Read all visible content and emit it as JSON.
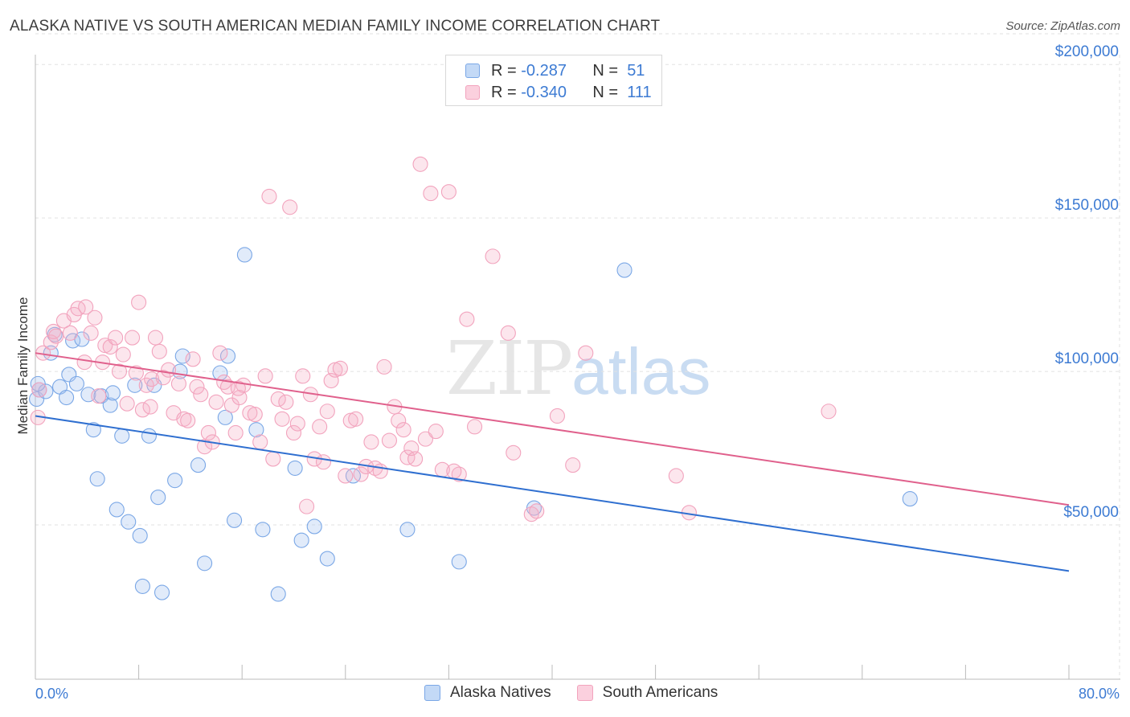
{
  "title": "ALASKA NATIVE VS SOUTH AMERICAN MEDIAN FAMILY INCOME CORRELATION CHART",
  "source": "Source: ZipAtlas.com",
  "watermark": {
    "zip": "ZIP",
    "atlas": "atlas"
  },
  "legend_top": [
    {
      "r_label": "R =",
      "r_value": "-0.287",
      "n_label": "N =",
      "n_value": "51"
    },
    {
      "r_label": "R =",
      "r_value": "-0.340",
      "n_label": "N =",
      "n_value": "111"
    }
  ],
  "chart_data": {
    "type": "scatter",
    "title": "ALASKA NATIVE VS SOUTH AMERICAN MEDIAN FAMILY INCOME CORRELATION CHART",
    "xlabel": "",
    "ylabel": "Median Family Income",
    "xlim": [
      0,
      80
    ],
    "ylim": [
      0,
      210000
    ],
    "x_tick_labels": [
      "0.0%",
      "80.0%"
    ],
    "y_ticks": [
      50000,
      100000,
      150000,
      200000
    ],
    "y_tick_labels": [
      "$50,000",
      "$100,000",
      "$150,000",
      "$200,000"
    ],
    "grid": true,
    "legend_position": "bottom-center",
    "series": [
      {
        "name": "Alaska Natives",
        "color": "#7aa7e6",
        "trend": {
          "x": [
            0,
            80
          ],
          "y": [
            85500,
            35000
          ],
          "color": "#2f6fd0"
        },
        "points": [
          [
            0.1,
            91000
          ],
          [
            0.3,
            94000
          ],
          [
            0.8,
            93500
          ],
          [
            1.2,
            106000
          ],
          [
            1.5,
            112000
          ],
          [
            1.9,
            95000
          ],
          [
            2.4,
            91500
          ],
          [
            2.6,
            99000
          ],
          [
            2.9,
            110000
          ],
          [
            3.2,
            96000
          ],
          [
            3.6,
            110500
          ],
          [
            4.1,
            92500
          ],
          [
            4.5,
            81000
          ],
          [
            4.8,
            65000
          ],
          [
            5.1,
            92000
          ],
          [
            5.8,
            89000
          ],
          [
            6.3,
            55000
          ],
          [
            6.7,
            79000
          ],
          [
            7.2,
            51000
          ],
          [
            7.7,
            95500
          ],
          [
            8.1,
            46500
          ],
          [
            8.3,
            30000
          ],
          [
            8.8,
            79000
          ],
          [
            9.2,
            95500
          ],
          [
            9.5,
            59000
          ],
          [
            9.8,
            28000
          ],
          [
            10.8,
            64500
          ],
          [
            11.2,
            100000
          ],
          [
            11.4,
            105000
          ],
          [
            12.6,
            69500
          ],
          [
            13.1,
            37500
          ],
          [
            14.3,
            99500
          ],
          [
            14.7,
            85000
          ],
          [
            14.9,
            105000
          ],
          [
            15.4,
            51500
          ],
          [
            16.2,
            138000
          ],
          [
            17.1,
            81000
          ],
          [
            17.6,
            48500
          ],
          [
            18.8,
            27500
          ],
          [
            20.1,
            68500
          ],
          [
            20.6,
            45000
          ],
          [
            21.6,
            49500
          ],
          [
            22.6,
            39000
          ],
          [
            24.6,
            66000
          ],
          [
            28.8,
            48500
          ],
          [
            32.8,
            38000
          ],
          [
            38.6,
            55500
          ],
          [
            45.6,
            133000
          ],
          [
            67.7,
            58500
          ],
          [
            0.2,
            96000
          ],
          [
            6.0,
            93000
          ]
        ]
      },
      {
        "name": "South Americans",
        "color": "#f2a3bd",
        "trend": {
          "x": [
            0,
            80
          ],
          "y": [
            106000,
            56500
          ],
          "color": "#e0608c"
        },
        "points": [
          [
            0.2,
            85000
          ],
          [
            0.3,
            94000
          ],
          [
            0.6,
            106000
          ],
          [
            1.2,
            109500
          ],
          [
            1.4,
            113000
          ],
          [
            1.6,
            111500
          ],
          [
            2.2,
            116500
          ],
          [
            2.7,
            112500
          ],
          [
            3.0,
            118500
          ],
          [
            3.3,
            120500
          ],
          [
            3.9,
            121000
          ],
          [
            4.3,
            112500
          ],
          [
            4.6,
            117500
          ],
          [
            4.9,
            92000
          ],
          [
            5.2,
            103000
          ],
          [
            5.4,
            108500
          ],
          [
            5.8,
            108000
          ],
          [
            6.2,
            111000
          ],
          [
            6.5,
            100000
          ],
          [
            6.8,
            105500
          ],
          [
            7.1,
            89500
          ],
          [
            7.5,
            111000
          ],
          [
            7.8,
            99500
          ],
          [
            8.0,
            122500
          ],
          [
            8.3,
            87500
          ],
          [
            8.6,
            95500
          ],
          [
            9.0,
            97500
          ],
          [
            9.3,
            111000
          ],
          [
            9.6,
            106500
          ],
          [
            9.9,
            98000
          ],
          [
            10.3,
            100500
          ],
          [
            10.7,
            86500
          ],
          [
            11.1,
            96000
          ],
          [
            11.5,
            84500
          ],
          [
            11.8,
            84000
          ],
          [
            12.2,
            104000
          ],
          [
            12.5,
            95000
          ],
          [
            12.8,
            92500
          ],
          [
            13.1,
            75500
          ],
          [
            13.4,
            80000
          ],
          [
            13.7,
            77000
          ],
          [
            14.0,
            90000
          ],
          [
            14.3,
            106000
          ],
          [
            14.6,
            96500
          ],
          [
            14.9,
            95000
          ],
          [
            15.2,
            89000
          ],
          [
            15.5,
            80000
          ],
          [
            15.8,
            91500
          ],
          [
            16.1,
            95500
          ],
          [
            16.6,
            86500
          ],
          [
            17.0,
            86000
          ],
          [
            17.4,
            77000
          ],
          [
            17.8,
            98500
          ],
          [
            18.1,
            157000
          ],
          [
            18.4,
            71500
          ],
          [
            18.8,
            91000
          ],
          [
            19.1,
            84500
          ],
          [
            19.4,
            90000
          ],
          [
            19.7,
            153500
          ],
          [
            20.0,
            80000
          ],
          [
            20.3,
            83000
          ],
          [
            20.7,
            98500
          ],
          [
            21.0,
            56000
          ],
          [
            21.3,
            92500
          ],
          [
            21.6,
            71500
          ],
          [
            22.0,
            82000
          ],
          [
            22.3,
            70500
          ],
          [
            22.6,
            87000
          ],
          [
            22.9,
            97000
          ],
          [
            23.2,
            100500
          ],
          [
            23.6,
            101000
          ],
          [
            24.0,
            66000
          ],
          [
            24.4,
            84000
          ],
          [
            24.8,
            84500
          ],
          [
            25.2,
            66500
          ],
          [
            25.6,
            69000
          ],
          [
            26.0,
            77000
          ],
          [
            26.3,
            68500
          ],
          [
            26.7,
            67500
          ],
          [
            27.0,
            101500
          ],
          [
            27.4,
            77500
          ],
          [
            27.8,
            88500
          ],
          [
            28.1,
            84000
          ],
          [
            28.5,
            81000
          ],
          [
            28.8,
            72000
          ],
          [
            29.1,
            75000
          ],
          [
            29.4,
            71500
          ],
          [
            29.8,
            167500
          ],
          [
            30.2,
            78000
          ],
          [
            30.6,
            158000
          ],
          [
            31.0,
            80500
          ],
          [
            31.5,
            68000
          ],
          [
            32.0,
            158500
          ],
          [
            32.8,
            66500
          ],
          [
            32.4,
            67500
          ],
          [
            33.4,
            117000
          ],
          [
            34.0,
            82000
          ],
          [
            35.4,
            137500
          ],
          [
            36.6,
            112500
          ],
          [
            37.0,
            73500
          ],
          [
            38.4,
            53500
          ],
          [
            38.8,
            54500
          ],
          [
            40.4,
            85500
          ],
          [
            41.6,
            69500
          ],
          [
            42.6,
            106000
          ],
          [
            49.6,
            66000
          ],
          [
            50.6,
            54000
          ],
          [
            61.4,
            87000
          ],
          [
            3.8,
            103000
          ],
          [
            15.7,
            94500
          ],
          [
            8.9,
            88500
          ]
        ]
      }
    ]
  }
}
